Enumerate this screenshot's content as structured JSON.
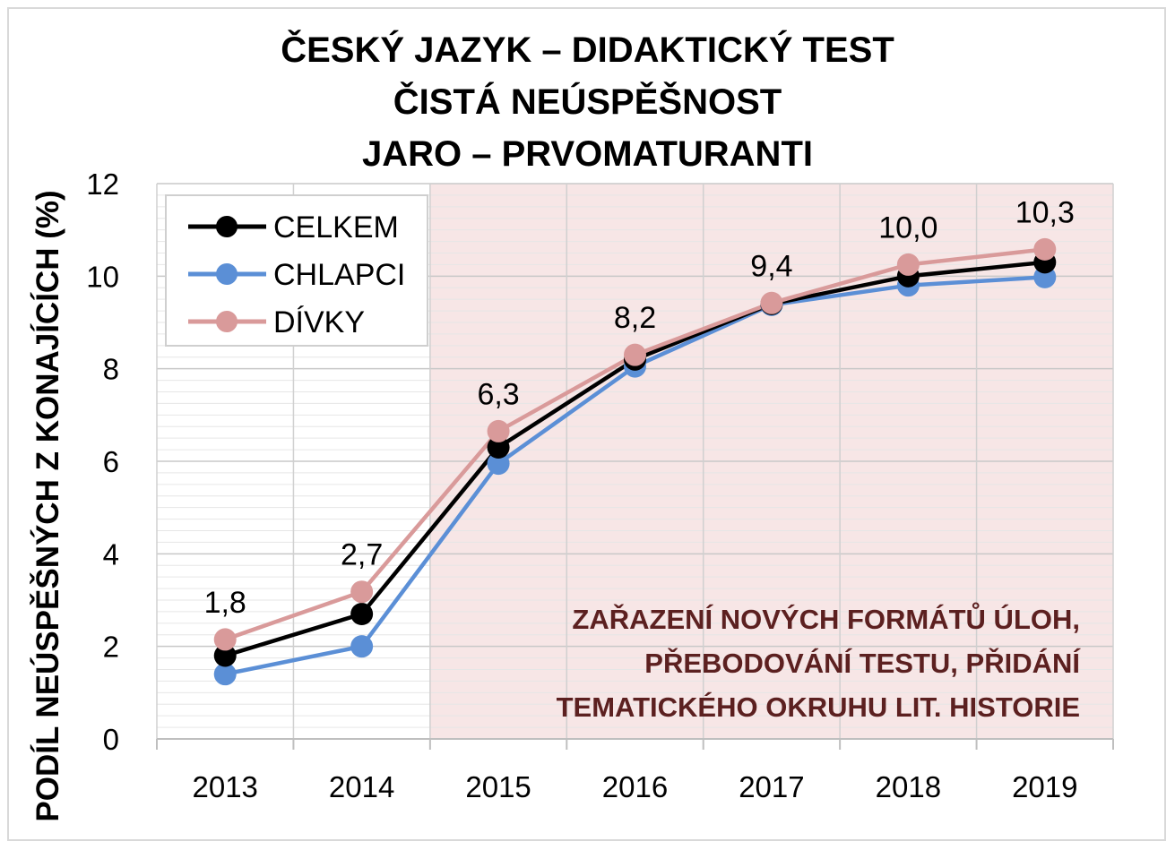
{
  "chart_data": {
    "type": "line",
    "title_lines": [
      "ČESKÝ JAZYK – DIDAKTICKÝ TEST",
      "ČISTÁ NEÚSPĚŠNOST",
      "JARO – PRVOMATURANTI"
    ],
    "ylabel": "PODÍL NEÚSPĚŠNÝCH Z KONAJÍCÍCH (%)",
    "xlabel": "",
    "categories": [
      "2013",
      "2014",
      "2015",
      "2016",
      "2017",
      "2018",
      "2019"
    ],
    "ylim": [
      0,
      12
    ],
    "yticks": [
      0,
      2,
      4,
      6,
      8,
      10,
      12
    ],
    "series": [
      {
        "name": "CELKEM",
        "color": "#000000",
        "values": [
          1.8,
          2.7,
          6.3,
          8.2,
          9.4,
          10.0,
          10.3
        ]
      },
      {
        "name": "CHLAPCI",
        "color": "#5b8fd6",
        "values": [
          1.4,
          2.0,
          5.95,
          8.05,
          9.38,
          9.8,
          9.98
        ]
      },
      {
        "name": "DÍVKY",
        "color": "#d99a9a",
        "values": [
          2.15,
          3.18,
          6.65,
          8.3,
          9.42,
          10.25,
          10.58
        ]
      }
    ],
    "data_labels": [
      "1,8",
      "2,7",
      "6,3",
      "8,2",
      "9,4",
      "10,0",
      "10,3"
    ],
    "highlight_region": {
      "from_category": "2015",
      "to_category": "2019",
      "color": "#f7e6e6"
    },
    "annotation_lines": [
      "ZAŘAZENÍ NOVÝCH FORMÁTŮ ÚLOH,",
      "PŘEBODOVÁNÍ TESTU, PŘIDÁNÍ",
      "TEMATICKÉHO OKRUHU LIT. HISTORIE"
    ],
    "annotation_color": "#5c2020",
    "legend_position": "top-left",
    "grid": true
  }
}
